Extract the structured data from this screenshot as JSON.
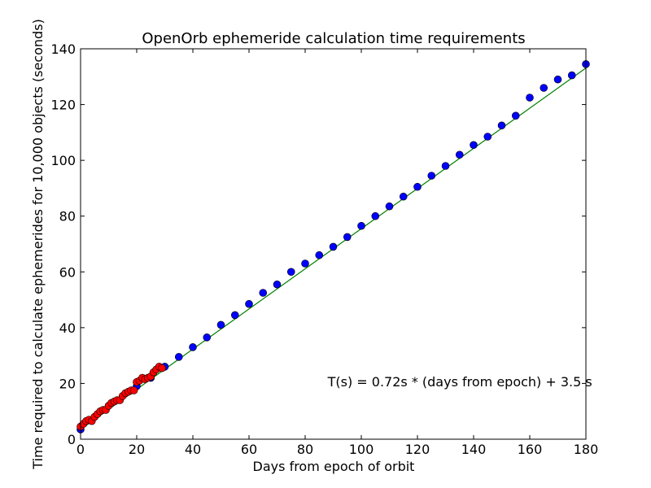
{
  "chart_data": {
    "type": "scatter",
    "title": "OpenOrb ephemeride calculation time requirements",
    "xlabel": "Days from epoch of orbit",
    "ylabel": "Time required to calculate ephemerides for 10,000 objects (seconds)",
    "xlim": [
      0,
      180
    ],
    "ylim": [
      0,
      140
    ],
    "xticks": [
      0,
      20,
      40,
      60,
      80,
      100,
      120,
      140,
      160,
      180
    ],
    "yticks": [
      0,
      20,
      40,
      60,
      80,
      100,
      120,
      140
    ],
    "grid": false,
    "annotation": {
      "text": "T(s) = 0.72s * (days from epoch) + 3.5 s",
      "x": 88,
      "y": 19
    },
    "fit_line": {
      "color": "#008000",
      "x": [
        0,
        180
      ],
      "y": [
        3.5,
        133.1
      ]
    },
    "series": [
      {
        "color": "#0000ff",
        "marker": "circle",
        "x": [
          0,
          20,
          25,
          30,
          35,
          40,
          45,
          50,
          55,
          60,
          65,
          70,
          75,
          80,
          85,
          90,
          95,
          100,
          105,
          110,
          115,
          120,
          125,
          130,
          135,
          140,
          145,
          150,
          155,
          160,
          165,
          170,
          175,
          180
        ],
        "y": [
          3.5,
          19,
          22,
          26,
          29.5,
          33,
          36.5,
          41,
          44.5,
          48.5,
          52.5,
          55.5,
          60,
          63,
          66,
          69,
          72.5,
          76.5,
          80,
          83.5,
          87,
          90.5,
          94.5,
          98,
          102,
          105.5,
          108.5,
          112.5,
          116,
          122.5,
          126,
          129,
          130.5,
          134.5
        ]
      },
      {
        "color": "#ff0000",
        "marker": "circle",
        "x": [
          0,
          1,
          2,
          3,
          4,
          5,
          6,
          7,
          8,
          9,
          10,
          11,
          12,
          13,
          14,
          15,
          16,
          17,
          18,
          19,
          20,
          21,
          22,
          23,
          24,
          25,
          26,
          27,
          28,
          29
        ],
        "y": [
          4.5,
          5.5,
          6.5,
          7,
          6.5,
          8,
          9,
          10,
          10.5,
          10.5,
          12,
          13,
          13.5,
          14,
          14,
          15.5,
          16.5,
          17,
          17.5,
          17.5,
          20.5,
          21,
          22,
          21.5,
          22,
          22.5,
          24,
          25,
          26,
          25.5
        ]
      }
    ]
  }
}
